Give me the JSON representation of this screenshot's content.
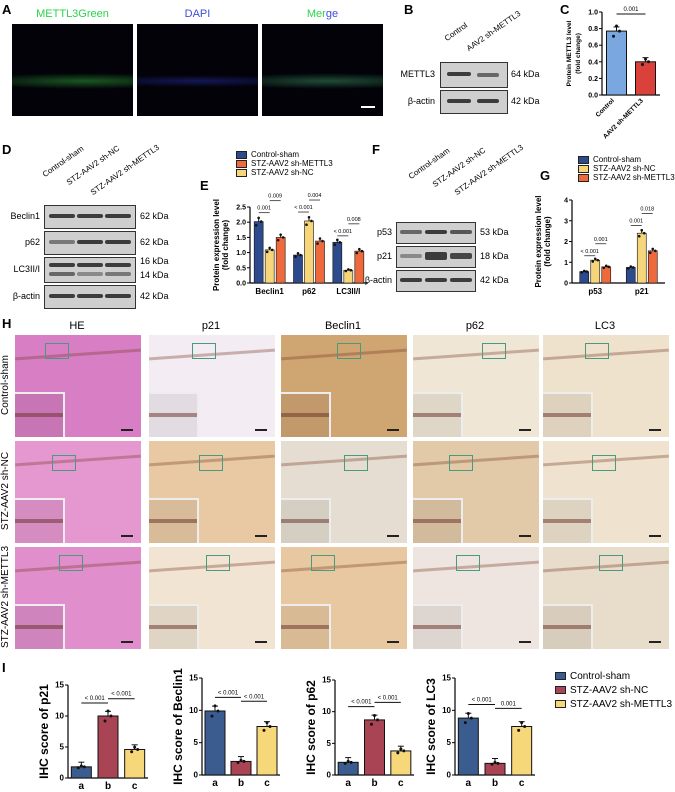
{
  "panels": {
    "A": "A",
    "B": "B",
    "C": "C",
    "D": "D",
    "E": "E",
    "F": "F",
    "G": "G",
    "H": "H",
    "I": "I"
  },
  "panelA": {
    "titles": [
      {
        "text": "METTL3Green",
        "color": "#2bd34a"
      },
      {
        "text": "DAPI",
        "color": "#3d4de0"
      }
    ],
    "merge_parts": [
      "Mer",
      "ge"
    ]
  },
  "panelB": {
    "lanes": [
      "Control",
      "AAV2 sh-METTL3"
    ],
    "rows": [
      {
        "label": "METTL3",
        "kda": "64 kDa"
      },
      {
        "label": "β-actin",
        "kda": "42 kDa"
      }
    ]
  },
  "panelD": {
    "lanes": [
      "Control-sham",
      "STZ-AAV2 sh-NC",
      "STZ-AAV2 sh-METTL3"
    ],
    "rows": [
      {
        "label": "Beclin1",
        "kda": "62 kDa"
      },
      {
        "label": "p62",
        "kda": "62 kDa"
      },
      {
        "label": "LC3II/I",
        "kda": "16 kDa",
        "kda2": "14 kDa"
      },
      {
        "label": "β-actin",
        "kda": "42 kDa"
      }
    ]
  },
  "panelF": {
    "lanes": [
      "Control-sham",
      "STZ-AAV2 sh-NC",
      "STZ-AAV2 sh-METTL3"
    ],
    "rows": [
      {
        "label": "p53",
        "kda": "53 kDa"
      },
      {
        "label": "p21",
        "kda": "18 kDa"
      },
      {
        "label": "β-actin",
        "kda": "42 kDa"
      }
    ]
  },
  "legendEG": [
    "Control-sham",
    "STZ-AAV2 sh-METTL3",
    "STZ-AAV2 sh-NC"
  ],
  "legendG": [
    "Control-sham",
    "STZ-AAV2 sh-NC",
    "STZ-AAV2 sh-METTL3"
  ],
  "legendI": [
    "Control-sham",
    "STZ-AAV2 sh-NC",
    "STZ-AAV2 sh-METTL3"
  ],
  "panelH": {
    "columns": [
      "HE",
      "p21",
      "Beclin1",
      "p62",
      "LC3"
    ],
    "rows": [
      "Control-sham",
      "STZ-AAV2 sh-NC",
      "STZ-AAV2 sh-METTL3"
    ]
  },
  "chart_data": [
    {
      "id": "C",
      "type": "bar",
      "ylabel": "Protein METTL3 level\n(fold change)",
      "ylim": [
        0,
        1.0
      ],
      "yticks": [
        "0.0",
        "0.2",
        "0.4",
        "0.6",
        "0.8",
        "1.0"
      ],
      "categories": [
        "Control",
        "AAV2 sh-METTL3"
      ],
      "values": [
        0.77,
        0.4
      ],
      "colors": [
        "#7aa7e0",
        "#d9413a"
      ],
      "pvalues": [
        {
          "between": [
            0,
            1
          ],
          "text": "0.001"
        }
      ]
    },
    {
      "id": "E",
      "type": "grouped-bar",
      "ylabel": "Protein expression level\n(fold change)",
      "ylim": [
        0,
        2.5
      ],
      "yticks": [
        "0.0",
        "0.5",
        "1.0",
        "1.5",
        "2.0",
        "2.5"
      ],
      "categories": [
        "Beclin1",
        "p62",
        "LC3II/I"
      ],
      "series": [
        {
          "name": "Control-sham",
          "color": "#2c4a8c",
          "values": [
            2.02,
            0.92,
            1.34
          ]
        },
        {
          "name": "STZ-AAV2 sh-NC",
          "color": "#f7d57a",
          "values": [
            1.09,
            2.04,
            0.42
          ]
        },
        {
          "name": "STZ-AAV2 sh-METTL3",
          "color": "#ee6a3c",
          "values": [
            1.5,
            1.38,
            1.05
          ]
        }
      ],
      "pvalues": [
        {
          "group": 0,
          "between": [
            0,
            1
          ],
          "text": "0.001"
        },
        {
          "group": 0,
          "between": [
            1,
            2
          ],
          "text": "0.009"
        },
        {
          "group": 1,
          "between": [
            0,
            1
          ],
          "text": "< 0.001"
        },
        {
          "group": 1,
          "between": [
            1,
            2
          ],
          "text": "0.004"
        },
        {
          "group": 2,
          "between": [
            0,
            1
          ],
          "text": "< 0.001"
        },
        {
          "group": 2,
          "between": [
            1,
            2
          ],
          "text": "0.008"
        }
      ]
    },
    {
      "id": "G",
      "type": "grouped-bar",
      "ylabel": "Protein expression level\n(fold change)",
      "ylim": [
        0,
        4
      ],
      "yticks": [
        "0",
        "1",
        "2",
        "3",
        "4"
      ],
      "categories": [
        "p53",
        "p21"
      ],
      "series": [
        {
          "name": "Control-sham",
          "color": "#2c4a8c",
          "values": [
            0.55,
            0.75
          ]
        },
        {
          "name": "STZ-AAV2 sh-NC",
          "color": "#f7d57a",
          "values": [
            1.1,
            2.4
          ]
        },
        {
          "name": "STZ-AAV2 sh-METTL3",
          "color": "#ee6a3c",
          "values": [
            0.78,
            1.55
          ]
        }
      ],
      "pvalues": [
        {
          "group": 0,
          "between": [
            0,
            1
          ],
          "text": "< 0.001"
        },
        {
          "group": 0,
          "between": [
            1,
            2
          ],
          "text": "0.001"
        },
        {
          "group": 1,
          "between": [
            0,
            1
          ],
          "text": "0.001"
        },
        {
          "group": 1,
          "between": [
            1,
            2
          ],
          "text": "0.018"
        }
      ]
    },
    {
      "id": "I1",
      "type": "bar",
      "ylabel": "IHC score of p21",
      "ylim": [
        0,
        15
      ],
      "yticks": [
        "0",
        "5",
        "10",
        "15"
      ],
      "categories": [
        "a",
        "b",
        "c"
      ],
      "values": [
        1.8,
        10.0,
        4.6
      ],
      "colors": [
        "#3b5c8f",
        "#a84454",
        "#f6d77a"
      ],
      "pvalues": [
        {
          "between": [
            0,
            1
          ],
          "text": "< 0.001"
        },
        {
          "between": [
            1,
            2
          ],
          "text": "< 0.001"
        }
      ]
    },
    {
      "id": "I2",
      "type": "bar",
      "ylabel": "IHC score of Beclin1",
      "ylim": [
        0,
        15
      ],
      "yticks": [
        "0",
        "5",
        "10",
        "15"
      ],
      "categories": [
        "a",
        "b",
        "c"
      ],
      "values": [
        9.9,
        2.1,
        7.5
      ],
      "colors": [
        "#3b5c8f",
        "#a84454",
        "#f6d77a"
      ],
      "pvalues": [
        {
          "between": [
            0,
            1
          ],
          "text": "< 0.001"
        },
        {
          "between": [
            1,
            2
          ],
          "text": "< 0.001"
        }
      ]
    },
    {
      "id": "I3",
      "type": "bar",
      "ylabel": "IHC score of p62",
      "ylim": [
        0,
        15
      ],
      "yticks": [
        "0",
        "5",
        "10",
        "15"
      ],
      "categories": [
        "a",
        "b",
        "c"
      ],
      "values": [
        2.0,
        8.7,
        3.8
      ],
      "colors": [
        "#3b5c8f",
        "#a84454",
        "#f6d77a"
      ],
      "pvalues": [
        {
          "between": [
            0,
            1
          ],
          "text": "< 0.001"
        },
        {
          "between": [
            1,
            2
          ],
          "text": "< 0.001"
        }
      ]
    },
    {
      "id": "I4",
      "type": "bar",
      "ylabel": "IHC score of LC3",
      "ylim": [
        0,
        15
      ],
      "yticks": [
        "0",
        "5",
        "10",
        "15"
      ],
      "categories": [
        "a",
        "b",
        "c"
      ],
      "values": [
        8.8,
        1.8,
        7.5
      ],
      "colors": [
        "#3b5c8f",
        "#a84454",
        "#f6d77a"
      ],
      "pvalues": [
        {
          "between": [
            0,
            1
          ],
          "text": "< 0.001"
        },
        {
          "between": [
            1,
            2
          ],
          "text": "0.001"
        }
      ]
    }
  ]
}
